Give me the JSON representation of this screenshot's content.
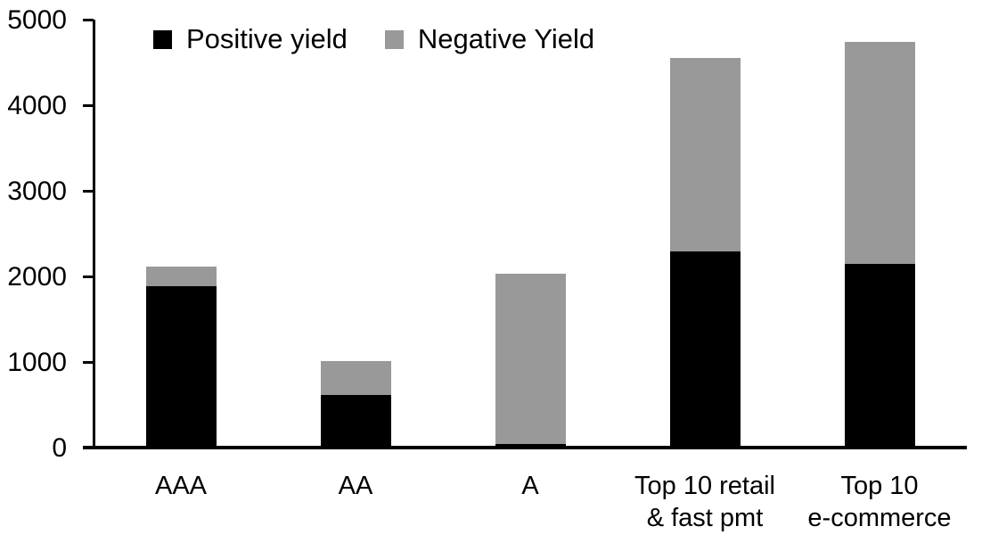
{
  "chart_data": {
    "type": "bar",
    "stacked": true,
    "title": "",
    "xlabel": "",
    "ylabel": "",
    "categories": [
      "AAA",
      "AA",
      "A",
      "Top 10 retail & fast pmt",
      "Top 10 e-commerce"
    ],
    "category_label_lines": [
      [
        "AAA"
      ],
      [
        "AA"
      ],
      [
        "A"
      ],
      [
        "Top 10 retail",
        "& fast pmt"
      ],
      [
        "Top 10",
        "e-commerce"
      ]
    ],
    "series": [
      {
        "name": "Positive yield",
        "color": "#000000",
        "values": [
          1890,
          625,
          50,
          2300,
          2150
        ]
      },
      {
        "name": "Negative Yield",
        "color": "#999999",
        "values": [
          235,
          390,
          1990,
          2255,
          2600
        ]
      }
    ],
    "totals": [
      2125,
      1015,
      2040,
      4555,
      4750
    ],
    "ylim": [
      0,
      5000
    ],
    "yticks": [
      0,
      1000,
      2000,
      3000,
      4000,
      5000
    ],
    "grid": false,
    "legend_position": "top-left-inside"
  }
}
